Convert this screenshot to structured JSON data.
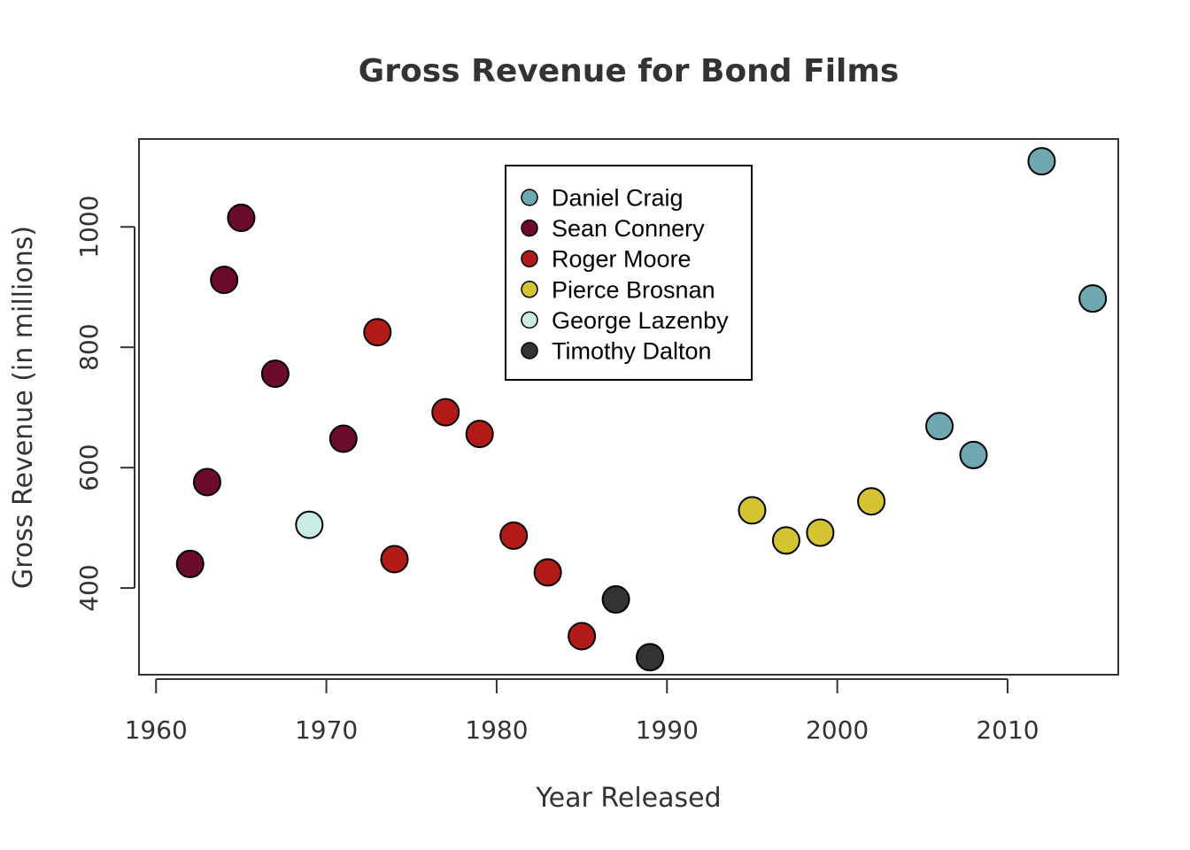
{
  "chart_data": {
    "type": "scatter",
    "title": "Gross Revenue for Bond Films",
    "xlabel": "Year Released",
    "ylabel": "Gross Revenue (in millions)",
    "xlim": [
      1959,
      2016.5
    ],
    "ylim": [
      256,
      1146
    ],
    "xticks": [
      1960,
      1970,
      1980,
      1990,
      2000,
      2010
    ],
    "yticks": [
      400,
      600,
      800,
      1000
    ],
    "grid": false,
    "legend_position": "top-center",
    "series": [
      {
        "name": "Daniel Craig",
        "color": "#6fa8b0",
        "points": [
          [
            2006,
            669
          ],
          [
            2008,
            621
          ],
          [
            2012,
            1109
          ],
          [
            2015,
            881
          ]
        ]
      },
      {
        "name": "Sean Connery",
        "color": "#6b0a2a",
        "points": [
          [
            1962,
            440
          ],
          [
            1963,
            576
          ],
          [
            1964,
            912
          ],
          [
            1965,
            1015
          ],
          [
            1967,
            756
          ],
          [
            1971,
            648
          ]
        ]
      },
      {
        "name": "Roger Moore",
        "color": "#b21a17",
        "points": [
          [
            1973,
            825
          ],
          [
            1974,
            448
          ],
          [
            1977,
            692
          ],
          [
            1979,
            656
          ],
          [
            1981,
            487
          ],
          [
            1983,
            426
          ],
          [
            1985,
            320
          ]
        ]
      },
      {
        "name": "Pierce Brosnan",
        "color": "#d4c431",
        "points": [
          [
            1995,
            529
          ],
          [
            1997,
            479
          ],
          [
            1999,
            492
          ],
          [
            2002,
            544
          ]
        ]
      },
      {
        "name": "George Lazenby",
        "color": "#c9ece6",
        "points": [
          [
            1969,
            505
          ]
        ]
      },
      {
        "name": "Timothy Dalton",
        "color": "#333333",
        "points": [
          [
            1987,
            381
          ],
          [
            1989,
            285
          ]
        ]
      }
    ]
  }
}
